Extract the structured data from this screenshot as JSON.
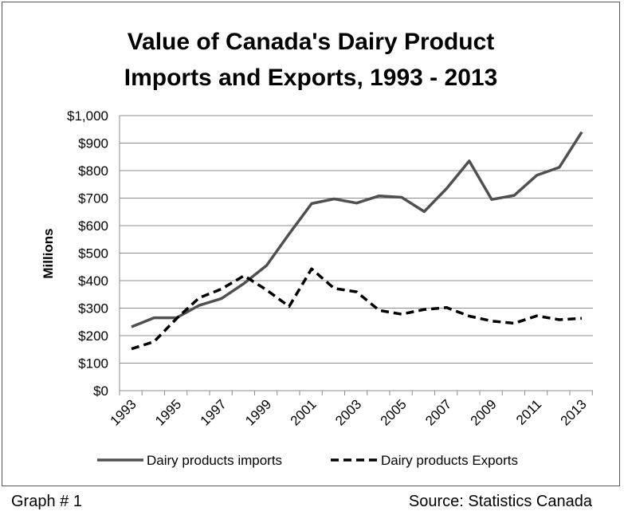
{
  "chart_data": {
    "type": "line",
    "title_lines": [
      "Value of Canada's Dairy Product",
      "Imports and Exports, 1993 - 2013"
    ],
    "ylabel": "Millions",
    "ylim": [
      0,
      1000
    ],
    "y_ticks": [
      0,
      100,
      200,
      300,
      400,
      500,
      600,
      700,
      800,
      900,
      1000
    ],
    "y_tick_labels": [
      "$0",
      "$100",
      "$200",
      "$300",
      "$400",
      "$500",
      "$600",
      "$700",
      "$800",
      "$900",
      "$1,000"
    ],
    "x": [
      1993,
      1994,
      1995,
      1996,
      1997,
      1998,
      1999,
      2000,
      2001,
      2002,
      2003,
      2004,
      2005,
      2006,
      2007,
      2008,
      2009,
      2010,
      2011,
      2012,
      2013
    ],
    "x_tick_labels": [
      "1993",
      "1995",
      "1997",
      "1999",
      "2001",
      "2003",
      "2005",
      "2007",
      "2009",
      "2011",
      "2013"
    ],
    "grid": "horizontal",
    "legend_position": "bottom",
    "series": [
      {
        "name": "Dairy products imports",
        "style": "solid",
        "color": "#505050",
        "values": [
          232,
          265,
          265,
          310,
          335,
          390,
          455,
          570,
          680,
          697,
          682,
          708,
          703,
          651,
          735,
          835,
          695,
          710,
          783,
          812,
          940
        ]
      },
      {
        "name": "Dairy products Exports",
        "style": "dashed",
        "color": "#000000",
        "values": [
          152,
          178,
          262,
          337,
          370,
          418,
          366,
          306,
          443,
          372,
          359,
          292,
          278,
          295,
          302,
          271,
          253,
          245,
          272,
          258,
          263
        ]
      }
    ]
  },
  "footer": {
    "left": "Graph # 1",
    "right": "Source: Statistics Canada"
  }
}
